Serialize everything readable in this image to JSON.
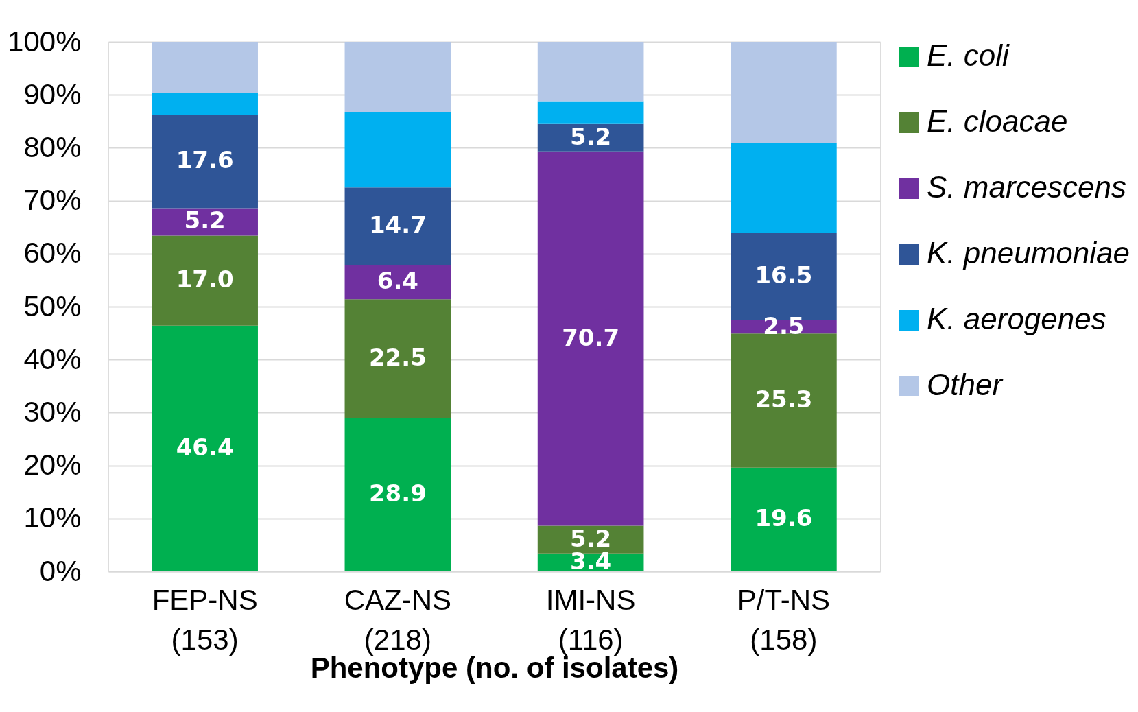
{
  "chart_data": {
    "type": "bar",
    "stacked": true,
    "xlabel": "Phenotype (no. of isolates)",
    "categories": [
      "FEP-NS (153)",
      "CAZ-NS (218)",
      "IMI-NS (116)",
      "P/T-NS (158)"
    ],
    "ylim": [
      0,
      100
    ],
    "yticks": [
      {
        "value": 0,
        "label": "0%"
      },
      {
        "value": 10,
        "label": "10%"
      },
      {
        "value": 20,
        "label": "20%"
      },
      {
        "value": 30,
        "label": "30%"
      },
      {
        "value": 40,
        "label": "40%"
      },
      {
        "value": 50,
        "label": "50%"
      },
      {
        "value": 60,
        "label": "60%"
      },
      {
        "value": 70,
        "label": "70%"
      },
      {
        "value": 80,
        "label": "80%"
      },
      {
        "value": 90,
        "label": "90%"
      },
      {
        "value": 100,
        "label": "100%"
      }
    ],
    "grid": "y",
    "legend": "right",
    "series": [
      {
        "name": "E. coli",
        "color": "#00b050",
        "values": [
          46.4,
          28.9,
          3.4,
          19.6
        ],
        "value_labels": [
          "46.4",
          "28.9",
          "3.4",
          "19.6"
        ]
      },
      {
        "name": "E. cloacae",
        "color": "#548235",
        "values": [
          17.0,
          22.5,
          5.2,
          25.3
        ],
        "value_labels": [
          "17.0",
          "22.5",
          "5.2",
          "25.3"
        ]
      },
      {
        "name": "S. marcescens",
        "color": "#7030a0",
        "values": [
          5.2,
          6.4,
          70.7,
          2.5
        ],
        "value_labels": [
          "5.2",
          "6.4",
          "70.7",
          "2.5"
        ]
      },
      {
        "name": "K. pneumoniae",
        "color": "#2f5597",
        "values": [
          17.6,
          14.7,
          5.2,
          16.5
        ],
        "value_labels": [
          "17.6",
          "14.7",
          "5.2",
          "16.5"
        ]
      },
      {
        "name": "K. aerogenes",
        "color": "#00b0f0",
        "values": [
          4.1,
          14.2,
          4.3,
          17.0
        ],
        "value_labels": [
          null,
          null,
          null,
          null
        ]
      },
      {
        "name": "Other",
        "color": "#b4c7e7",
        "values": [
          9.7,
          13.3,
          11.2,
          19.1
        ],
        "value_labels": [
          null,
          null,
          null,
          null
        ]
      }
    ]
  }
}
